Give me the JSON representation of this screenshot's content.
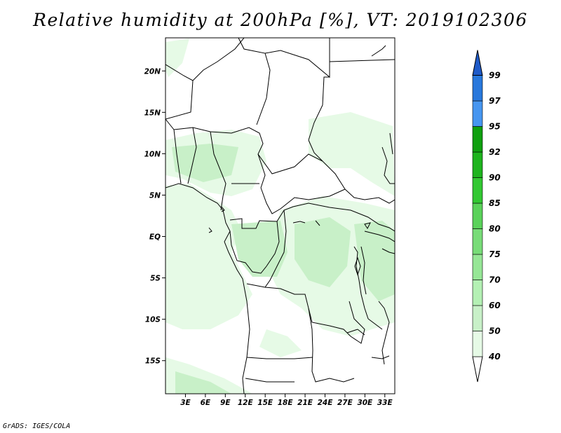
{
  "title": "Relative humidity at 200hPa [%], VT: 2019102306",
  "credit": "GrADS: IGES/COLA",
  "map": {
    "lat_range": [
      -19,
      24
    ],
    "lon_range": [
      0,
      34.5
    ],
    "lat_ticks": [
      {
        "value": 20,
        "label": "20N"
      },
      {
        "value": 15,
        "label": "15N"
      },
      {
        "value": 10,
        "label": "10N"
      },
      {
        "value": 5,
        "label": "5N"
      },
      {
        "value": 0,
        "label": "EQ"
      },
      {
        "value": -5,
        "label": "5S"
      },
      {
        "value": -10,
        "label": "10S"
      },
      {
        "value": -15,
        "label": "15S"
      }
    ],
    "lon_ticks": [
      {
        "value": 3,
        "label": "3E"
      },
      {
        "value": 6,
        "label": "6E"
      },
      {
        "value": 9,
        "label": "9E"
      },
      {
        "value": 12,
        "label": "12E"
      },
      {
        "value": 15,
        "label": "15E"
      },
      {
        "value": 18,
        "label": "18E"
      },
      {
        "value": 21,
        "label": "21E"
      },
      {
        "value": 24,
        "label": "24E"
      },
      {
        "value": 27,
        "label": "27E"
      },
      {
        "value": 30,
        "label": "30E"
      },
      {
        "value": 33,
        "label": "33E"
      }
    ]
  },
  "colorbar": {
    "levels": [
      "40",
      "50",
      "60",
      "70",
      "75",
      "80",
      "85",
      "90",
      "92",
      "95",
      "97",
      "99"
    ],
    "colors": [
      "#ffffff",
      "#e6fae6",
      "#c8f0c8",
      "#b4f0b4",
      "#96e696",
      "#78dc78",
      "#5ad25a",
      "#32c832",
      "#1eb41e",
      "#0fa00f",
      "#4696f0",
      "#2878dc",
      "#1e5ac8"
    ]
  },
  "colors": {
    "humidity_light": "#e6fae6",
    "humidity_mid": "#c8f0c8",
    "border": "#000000"
  }
}
